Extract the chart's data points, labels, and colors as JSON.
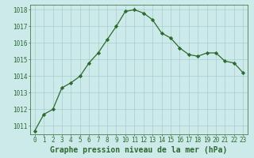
{
  "x": [
    0,
    1,
    2,
    3,
    4,
    5,
    6,
    7,
    8,
    9,
    10,
    11,
    12,
    13,
    14,
    15,
    16,
    17,
    18,
    19,
    20,
    21,
    22,
    23
  ],
  "y": [
    1010.7,
    1011.7,
    1012.0,
    1013.3,
    1013.6,
    1014.0,
    1014.8,
    1015.4,
    1016.2,
    1017.0,
    1017.9,
    1018.0,
    1017.8,
    1017.4,
    1016.6,
    1016.3,
    1015.7,
    1015.3,
    1015.2,
    1015.4,
    1015.4,
    1014.9,
    1014.8,
    1014.2
  ],
  "line_color": "#2d6a2d",
  "marker": "D",
  "marker_size": 2.2,
  "bg_color": "#cceaea",
  "grid_color": "#aacccc",
  "ylim_min": 1010.5,
  "ylim_max": 1018.3,
  "yticks": [
    1011,
    1012,
    1013,
    1014,
    1015,
    1016,
    1017,
    1018
  ],
  "xticks": [
    0,
    1,
    2,
    3,
    4,
    5,
    6,
    7,
    8,
    9,
    10,
    11,
    12,
    13,
    14,
    15,
    16,
    17,
    18,
    19,
    20,
    21,
    22,
    23
  ],
  "xlabel": "Graphe pression niveau de la mer (hPa)",
  "tick_color": "#2d6a2d",
  "tick_fontsize": 5.5,
  "xlabel_fontsize": 7.0,
  "axis_color": "#4a7a4a",
  "linewidth": 0.9
}
